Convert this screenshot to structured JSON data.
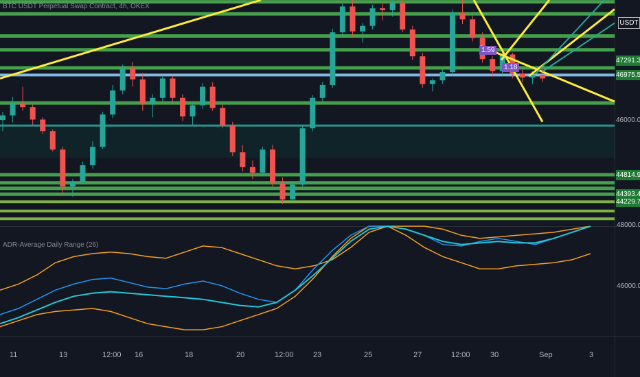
{
  "chart_data": {
    "type": "candlestick",
    "title": "BTC USDT Perpetual Swap Contract, 4h, OKEX",
    "currency": "USDT",
    "colors": {
      "background": "#131722",
      "up": "#26a69a",
      "down": "#ef5350",
      "level_green": "#4caf50",
      "level_light": "#8bc34a",
      "teal_line": "#26a69a",
      "blue_line": "#90caf9",
      "trend_yellow": "#ffeb3b",
      "adr_orange": "#f7a21b",
      "adr_blue": "#2196f3",
      "adr_teal": "#26c6da"
    },
    "price_axis": {
      "labels": [
        "47291.3",
        "46975.5",
        "46000.0",
        "44814.9",
        "44393.4",
        "44229.7"
      ],
      "ylim": [
        43700,
        48600
      ]
    },
    "x_ticks": [
      "11",
      "13",
      "12:00",
      "16",
      "18",
      "20",
      "12:00",
      "23",
      "25",
      "27",
      "12:00",
      "30",
      "Sep",
      "3"
    ],
    "level_lines": [
      48560,
      48300,
      47820,
      47520,
      47130,
      46975.5,
      46370,
      45880,
      44814.9,
      44640,
      44520,
      44393.4,
      44229.7,
      44030,
      43860
    ],
    "candles": [
      [
        46000,
        46180,
        45760,
        46100
      ],
      [
        46100,
        46500,
        45950,
        46350
      ],
      [
        46350,
        46720,
        46200,
        46280
      ],
      [
        46280,
        46340,
        45900,
        46010
      ],
      [
        46010,
        46060,
        45700,
        45760
      ],
      [
        45760,
        45800,
        45320,
        45360
      ],
      [
        45360,
        45420,
        44400,
        44560
      ],
      [
        44560,
        44720,
        44340,
        44660
      ],
      [
        44660,
        45100,
        44600,
        45020
      ],
      [
        45020,
        45540,
        44950,
        45420
      ],
      [
        45420,
        46180,
        45380,
        46120
      ],
      [
        46120,
        46760,
        46040,
        46640
      ],
      [
        46640,
        47200,
        46560,
        47120
      ],
      [
        47120,
        47260,
        46720,
        46880
      ],
      [
        46880,
        47020,
        46200,
        46340
      ],
      [
        46340,
        46560,
        46060,
        46480
      ],
      [
        46480,
        46980,
        46400,
        46900
      ],
      [
        46900,
        46960,
        46380,
        46480
      ],
      [
        46480,
        46560,
        45980,
        46080
      ],
      [
        46080,
        46380,
        45900,
        46320
      ],
      [
        46320,
        46800,
        46240,
        46720
      ],
      [
        46720,
        46820,
        46200,
        46260
      ],
      [
        46260,
        46340,
        45820,
        45880
      ],
      [
        45880,
        45960,
        45220,
        45300
      ],
      [
        45300,
        45460,
        44880,
        44980
      ],
      [
        44980,
        45120,
        44720,
        44860
      ],
      [
        44860,
        45420,
        44800,
        45360
      ],
      [
        45360,
        45460,
        44560,
        44640
      ],
      [
        44640,
        44760,
        44180,
        44280
      ],
      [
        44280,
        44680,
        44220,
        44600
      ],
      [
        44600,
        45880,
        44560,
        45820
      ],
      [
        45820,
        46540,
        45760,
        46480
      ],
      [
        46480,
        46820,
        46400,
        46760
      ],
      [
        46760,
        47980,
        46700,
        47900
      ],
      [
        47900,
        48520,
        47780,
        48460
      ],
      [
        48460,
        48600,
        47800,
        47920
      ],
      [
        47920,
        48100,
        47680,
        48040
      ],
      [
        48040,
        48500,
        47960,
        48420
      ],
      [
        48420,
        48520,
        48160,
        48380
      ],
      [
        48380,
        48600,
        48240,
        48540
      ],
      [
        48540,
        48600,
        47900,
        47960
      ],
      [
        47960,
        48040,
        47300,
        47380
      ],
      [
        47380,
        47460,
        46700,
        46780
      ],
      [
        46780,
        46900,
        46620,
        46860
      ],
      [
        46860,
        47100,
        46780,
        47040
      ],
      [
        47040,
        48400,
        46980,
        48320
      ],
      [
        48320,
        48600,
        48080,
        48180
      ],
      [
        48180,
        48260,
        47700,
        47780
      ],
      [
        47780,
        47900,
        47240,
        47320
      ],
      [
        47320,
        47380,
        46940,
        47060
      ],
      [
        47060,
        47500,
        46980,
        47420
      ],
      [
        47420,
        47460,
        46900,
        47000
      ],
      [
        47000,
        47100,
        46820,
        46920
      ],
      [
        46920,
        47060,
        46780,
        46980
      ],
      [
        46980,
        47200,
        46820,
        46900
      ]
    ],
    "indicator": {
      "title": "ADR-Average Daily Range (26)",
      "axis_labels": [
        "48000.0",
        "46000.0"
      ],
      "ylim": [
        44400,
        48000
      ],
      "upper_band": [
        45900,
        46100,
        46400,
        46800,
        47000,
        47100,
        47150,
        47100,
        47000,
        46950,
        47150,
        47350,
        47300,
        47100,
        46900,
        46700,
        46600,
        46700,
        46900,
        47300,
        47800,
        48000,
        48000,
        48000,
        47900,
        47700,
        47600,
        47650,
        47700,
        47750,
        47800,
        47900,
        48000
      ],
      "lower_band": [
        44700,
        44900,
        45100,
        45200,
        45250,
        45300,
        45200,
        45000,
        44800,
        44700,
        44600,
        44600,
        44700,
        44900,
        45100,
        45300,
        45700,
        46300,
        47000,
        47600,
        48000,
        48000,
        47700,
        47300,
        47000,
        46800,
        46600,
        46600,
        46700,
        46750,
        46800,
        46900,
        47100
      ],
      "blue_line": [
        45100,
        45300,
        45600,
        45900,
        46100,
        46250,
        46300,
        46150,
        46000,
        45950,
        46100,
        46200,
        46050,
        45800,
        45600,
        45500,
        45900,
        46600,
        47200,
        47700,
        48000,
        48000,
        47900,
        47700,
        47400,
        47350,
        47500,
        47600,
        47500,
        47400,
        47600,
        47800,
        48000
      ],
      "teal_line": [
        44800,
        45000,
        45250,
        45500,
        45700,
        45800,
        45850,
        45800,
        45750,
        45700,
        45650,
        45600,
        45500,
        45400,
        45350,
        45500,
        45900,
        46400,
        46950,
        47500,
        47900,
        48000,
        47900,
        47700,
        47500,
        47400,
        47450,
        47500,
        47450,
        47450,
        47600,
        47800,
        48000
      ]
    },
    "annotations": [
      "1.59",
      "1.18"
    ]
  }
}
